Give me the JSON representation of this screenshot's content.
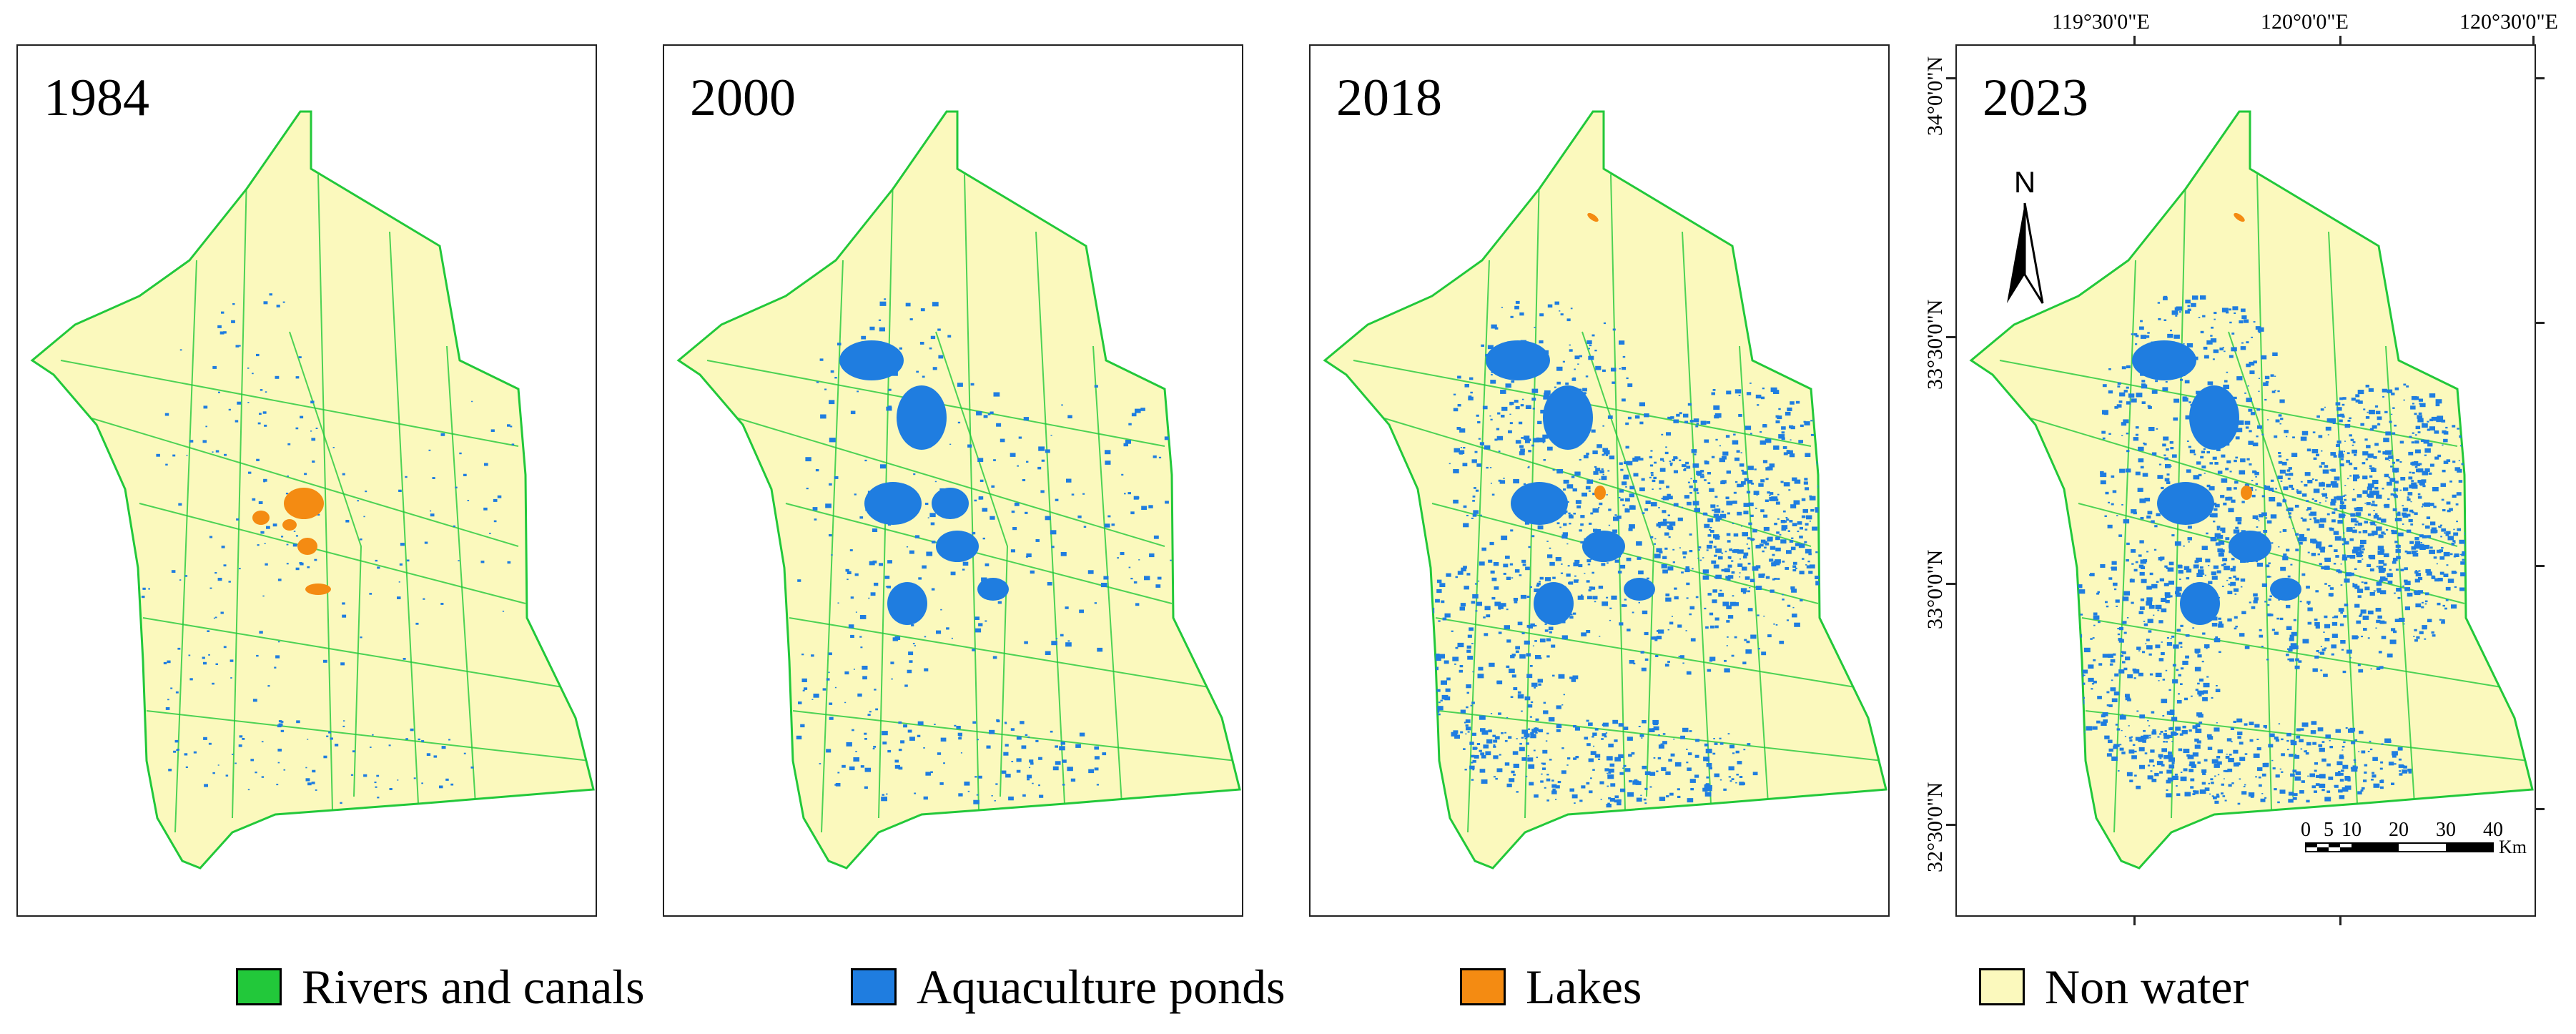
{
  "panels": [
    {
      "year": "1984"
    },
    {
      "year": "2000"
    },
    {
      "year": "2018"
    },
    {
      "year": "2023"
    }
  ],
  "top_coords": [
    "119°30'0\"E",
    "120°0'0\"E",
    "120°30'0\"E"
  ],
  "left_coords": [
    "34°0'0\"N",
    "33°30'0\"N",
    "33°0'0\"N",
    "32°30'0\"N"
  ],
  "north_label": "N",
  "scale": {
    "ticks": [
      "0",
      "5",
      "10",
      "20",
      "30",
      "40"
    ],
    "unit": "Km"
  },
  "legend": [
    {
      "label": "Rivers and canals",
      "color": "#22c83a"
    },
    {
      "label": "Aquaculture ponds",
      "color": "#1f7de0"
    },
    {
      "label": "Lakes",
      "color": "#f48b12"
    },
    {
      "label": "Non water",
      "color": "#fbf9bd"
    }
  ],
  "colors": {
    "nonwater": "#fbf9bd",
    "river": "#22c83a",
    "pond": "#1f7de0",
    "lake": "#f48b12"
  }
}
